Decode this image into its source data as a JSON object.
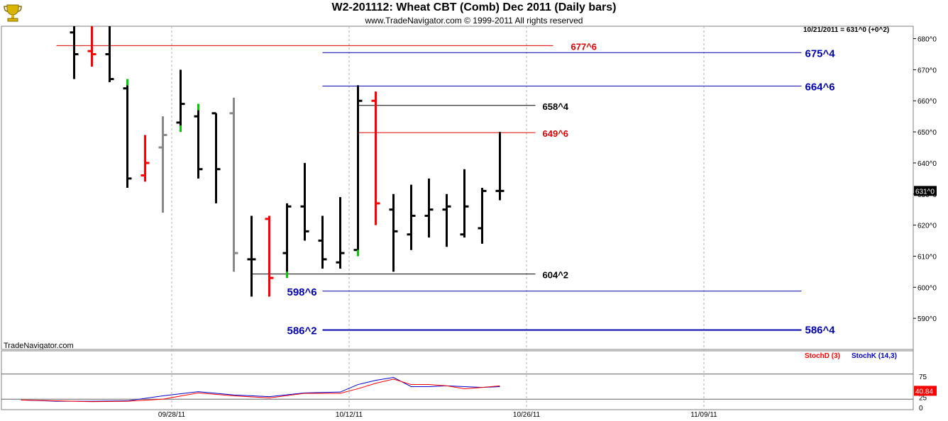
{
  "header": {
    "title": "W2-201112:  Wheat CBT (Comb) Dec 2011  (Daily bars)",
    "copyright": "www.TradeNavigator.com © 1999-2011 All rights reserved"
  },
  "quote_line": "10/21/2011 = 631^0 (+0^2)",
  "watermark": "TradeNavigator.com",
  "last_price_label": "631^0",
  "indicator": {
    "stochd_label": "StochD (3)",
    "stochk_label": "StochK (14,3)",
    "value_label": "40.84",
    "yticks": [
      "75",
      "25",
      "0"
    ],
    "levels": [
      80,
      20
    ]
  },
  "colors": {
    "up_bar": "#000000",
    "down_bar": "#ff0000",
    "neutral_bar": "#888888",
    "green_tick": "#00cc00",
    "blue_level": "#0000aa",
    "red_level": "#dd0000",
    "black_level": "#000000",
    "stochd": "#ff0000",
    "stochk": "#0000cc",
    "value_box": "#ff0000",
    "price_box": "#000000"
  },
  "chart_data": {
    "type": "ohlc",
    "title": "W2-201112:  Wheat CBT (Comb) Dec 2011  (Daily bars)",
    "price_unit": "cents/bu in 1/8ths (e.g. 631^0)",
    "ylim": [
      580,
      684
    ],
    "yticks": [
      "680^0",
      "670^0",
      "660^0",
      "650^0",
      "640^0",
      "630^0",
      "620^0",
      "610^0",
      "600^0",
      "590^0"
    ],
    "ytick_values": [
      680,
      670,
      660,
      650,
      640,
      630,
      620,
      610,
      600,
      590
    ],
    "xticks": [
      "09/28/11",
      "10/12/11",
      "10/26/11",
      "11/09/11"
    ],
    "xtick_slots": [
      9.5,
      19.5,
      29.5,
      39.5
    ],
    "n_slots": 45,
    "bars": [
      {
        "slot": 4,
        "open": 682,
        "high": 684,
        "low": 667,
        "close": 675,
        "color": "up"
      },
      {
        "slot": 5,
        "open": 676,
        "high": 684,
        "low": 671,
        "close": 675,
        "color": "down"
      },
      {
        "slot": 6,
        "open": 675,
        "high": 684,
        "low": 666,
        "close": 667,
        "color": "up"
      },
      {
        "slot": 7,
        "open": 664,
        "high": 667,
        "low": 632,
        "close": 635,
        "color": "up",
        "mark": "high"
      },
      {
        "slot": 8,
        "open": 636,
        "high": 649,
        "low": 634,
        "close": 640,
        "color": "down"
      },
      {
        "slot": 9,
        "open": 645,
        "high": 655,
        "low": 624,
        "close": 649,
        "color": "neutral"
      },
      {
        "slot": 10,
        "open": 653,
        "high": 670,
        "low": 650,
        "close": 659,
        "color": "up",
        "mark": "low"
      },
      {
        "slot": 11,
        "open": 655,
        "high": 659,
        "low": 635,
        "close": 638,
        "color": "up",
        "mark": "high"
      },
      {
        "slot": 12,
        "open": 656,
        "high": 656,
        "low": 627,
        "close": 638,
        "color": "up"
      },
      {
        "slot": 13,
        "open": 656,
        "high": 661,
        "low": 605,
        "close": 611,
        "color": "neutral"
      },
      {
        "slot": 14,
        "open": 609,
        "high": 623,
        "low": 597,
        "close": 609,
        "color": "up"
      },
      {
        "slot": 15,
        "open": 622,
        "high": 623,
        "low": 597,
        "close": 603,
        "color": "down"
      },
      {
        "slot": 16,
        "open": 611,
        "high": 627,
        "low": 603,
        "close": 626,
        "color": "up",
        "mark": "low"
      },
      {
        "slot": 17,
        "open": 626,
        "high": 640,
        "low": 615,
        "close": 618,
        "color": "up"
      },
      {
        "slot": 18,
        "open": 615,
        "high": 623,
        "low": 606,
        "close": 609,
        "color": "up"
      },
      {
        "slot": 19,
        "open": 608,
        "high": 629,
        "low": 606,
        "close": 611,
        "color": "up"
      },
      {
        "slot": 20,
        "open": 612,
        "high": 665,
        "low": 610,
        "close": 660,
        "color": "up",
        "mark": "low"
      },
      {
        "slot": 21,
        "open": 660,
        "high": 663,
        "low": 620,
        "close": 627,
        "color": "down"
      },
      {
        "slot": 22,
        "open": 625,
        "high": 630,
        "low": 605,
        "close": 618,
        "color": "up"
      },
      {
        "slot": 23,
        "open": 617,
        "high": 633,
        "low": 612,
        "close": 623,
        "color": "up"
      },
      {
        "slot": 24,
        "open": 623,
        "high": 635,
        "low": 616,
        "close": 625,
        "color": "up"
      },
      {
        "slot": 25,
        "open": 625,
        "high": 630,
        "low": 613,
        "close": 626,
        "color": "up"
      },
      {
        "slot": 26,
        "open": 617,
        "high": 638,
        "low": 616,
        "close": 626,
        "color": "up"
      },
      {
        "slot": 27,
        "open": 619,
        "high": 632,
        "low": 614,
        "close": 631,
        "color": "up"
      },
      {
        "slot": 28,
        "open": 631,
        "high": 650,
        "low": 628,
        "close": 631,
        "color": "up"
      }
    ],
    "levels": [
      {
        "label": "677^6",
        "value": 677.75,
        "from_slot": 3,
        "to_slot": 31,
        "color": "red",
        "label_slot": 32
      },
      {
        "label": "675^4",
        "value": 675.5,
        "from_slot": 18,
        "to_slot": 45,
        "color": "blue",
        "label_slot": 45.2,
        "bold": true
      },
      {
        "label": "664^6",
        "value": 664.75,
        "from_slot": 18,
        "to_slot": 45,
        "color": "blue",
        "label_slot": 45.2,
        "bold": true
      },
      {
        "label": "658^4",
        "value": 658.5,
        "from_slot": 20,
        "to_slot": 30,
        "color": "black",
        "label_slot": 30.4
      },
      {
        "label": "649^6",
        "value": 649.75,
        "from_slot": 20,
        "to_slot": 30,
        "color": "red",
        "label_slot": 30.4
      },
      {
        "label": "604^2",
        "value": 604.25,
        "from_slot": 14,
        "to_slot": 30,
        "color": "black",
        "label_slot": 30.4
      },
      {
        "label": "598^6",
        "value": 598.75,
        "from_slot": 18,
        "to_slot": 45,
        "color": "blue",
        "label_slot": 16,
        "bold": true
      },
      {
        "label": "586^2",
        "value": 586.25,
        "from_slot": 18,
        "to_slot": 45,
        "color": "blue",
        "label_slot": 16,
        "bold": true
      },
      {
        "label": "586^4",
        "value": 586.5,
        "from_slot": 18,
        "to_slot": 45,
        "color": "blue",
        "label_slot": 45.2,
        "bold": true,
        "no_line": true
      }
    ],
    "stochastic": {
      "ylim": [
        0,
        100
      ],
      "x_slots": [
        1,
        3,
        5,
        7,
        9,
        11,
        13,
        15,
        17,
        19,
        20,
        21,
        22,
        23,
        24,
        25,
        26,
        27,
        28
      ],
      "stochd": [
        18,
        16,
        14,
        15,
        20,
        35,
        28,
        23,
        34,
        34,
        45,
        58,
        68,
        55,
        55,
        52,
        45,
        48,
        52
      ],
      "stochk": [
        18,
        15,
        15,
        16,
        28,
        38,
        30,
        26,
        35,
        37,
        55,
        65,
        72,
        50,
        50,
        52,
        50,
        48,
        50
      ]
    }
  }
}
